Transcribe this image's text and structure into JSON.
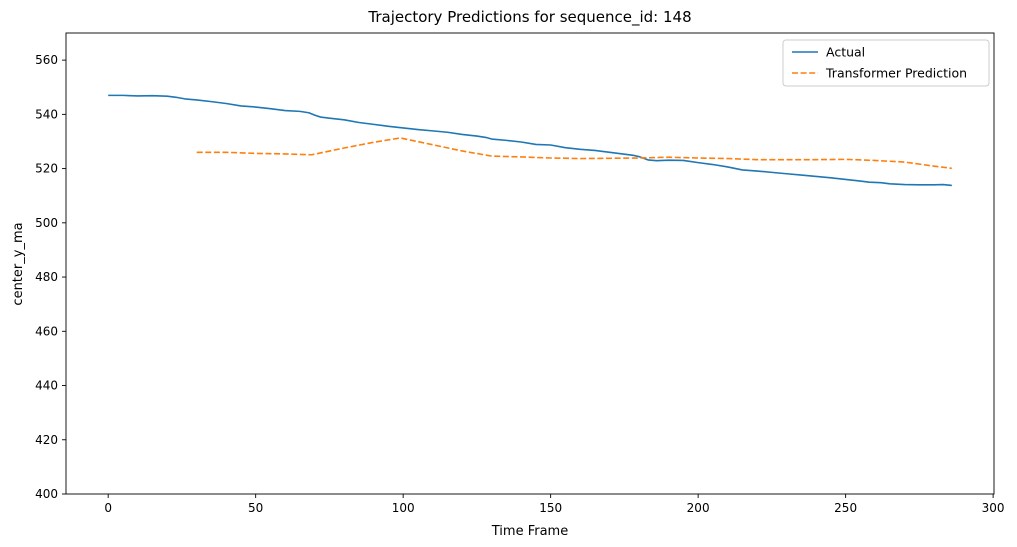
{
  "chart_data": {
    "type": "line",
    "title": "Trajectory Predictions for sequence_id: 148",
    "xlabel": "Time Frame",
    "ylabel": "center_y_ma",
    "xlim": [
      -14.3,
      300.3
    ],
    "ylim": [
      400,
      570
    ],
    "xticks": [
      0,
      50,
      100,
      150,
      200,
      250,
      300
    ],
    "yticks": [
      400,
      420,
      440,
      460,
      480,
      500,
      520,
      540,
      560
    ],
    "xtick_labels": [
      "0",
      "50",
      "100",
      "150",
      "200",
      "250",
      "300"
    ],
    "ytick_labels": [
      "400",
      "420",
      "440",
      "460",
      "480",
      "500",
      "520",
      "540",
      "560"
    ],
    "legend": {
      "location": "upper right",
      "grid": false
    },
    "series": [
      {
        "name": "Actual",
        "color": "#1f77b4",
        "style": "solid",
        "x": [
          0,
          5,
          10,
          15,
          20,
          23,
          26,
          30,
          35,
          40,
          45,
          50,
          55,
          60,
          65,
          68,
          70,
          72,
          75,
          80,
          85,
          90,
          95,
          100,
          105,
          110,
          115,
          120,
          125,
          128,
          130,
          135,
          140,
          145,
          150,
          155,
          160,
          165,
          170,
          175,
          178,
          180,
          183,
          186,
          190,
          195,
          200,
          205,
          210,
          215,
          220,
          225,
          230,
          235,
          240,
          245,
          250,
          255,
          258,
          262,
          265,
          270,
          275,
          280,
          283,
          286
        ],
        "y": [
          547,
          547,
          546.8,
          546.9,
          546.7,
          546.3,
          545.7,
          545.3,
          544.7,
          544,
          543.1,
          542.7,
          542.1,
          541.4,
          541.1,
          540.6,
          539.7,
          539,
          538.6,
          538,
          537,
          536.3,
          535.6,
          535,
          534.4,
          533.9,
          533.4,
          532.6,
          532,
          531.5,
          530.9,
          530.4,
          529.8,
          528.9,
          528.7,
          527.7,
          527.1,
          526.7,
          526,
          525.3,
          524.9,
          524.4,
          523.2,
          522.9,
          523.1,
          523,
          522.2,
          521.5,
          520.6,
          519.5,
          519.1,
          518.6,
          518.1,
          517.6,
          517.1,
          516.6,
          516,
          515.4,
          515,
          514.8,
          514.4,
          514.1,
          514,
          514,
          514.1,
          513.8
        ]
      },
      {
        "name": "Transformer Prediction",
        "color": "#ff7f0e",
        "style": "dashed",
        "x": [
          30,
          40,
          50,
          60,
          69,
          80,
          90,
          99,
          110,
          120,
          130,
          140,
          150,
          160,
          170,
          180,
          190,
          200,
          210,
          220,
          230,
          240,
          250,
          260,
          270,
          280,
          286
        ],
        "y": [
          526,
          526,
          525.6,
          525.4,
          525.1,
          527.6,
          529.7,
          531.3,
          528.8,
          526.5,
          524.6,
          524.3,
          523.9,
          523.7,
          523.8,
          523.9,
          524.2,
          523.9,
          523.7,
          523.3,
          523.3,
          523.3,
          523.4,
          523,
          522.4,
          520.9,
          520.1
        ]
      }
    ]
  }
}
